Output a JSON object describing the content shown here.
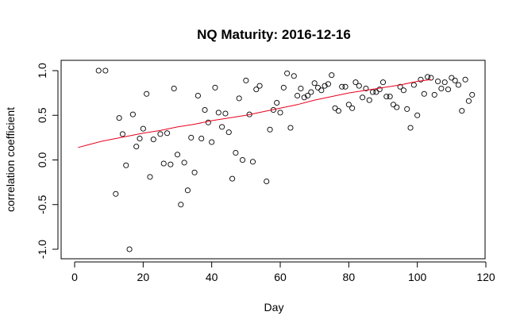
{
  "chart_data": {
    "type": "scatter",
    "title": "NQ Maturity: 2016-12-16",
    "xlabel": "Day",
    "ylabel": "correlation coefficient",
    "xlim": [
      1,
      116
    ],
    "ylim": [
      -1.0,
      1.0
    ],
    "x_ticks": [
      0,
      20,
      40,
      60,
      80,
      100,
      120
    ],
    "x_tick_labels": [
      "0",
      "20",
      "40",
      "60",
      "80",
      "100",
      "120"
    ],
    "y_ticks": [
      -1.0,
      -0.5,
      0.0,
      0.5,
      1.0
    ],
    "y_tick_labels": [
      "-1.0",
      "-0.5",
      "0.0",
      "0.5",
      "1.0"
    ],
    "grid": false,
    "trend_color": "#e8001c",
    "series": [
      {
        "x": [
          7,
          9,
          12,
          13,
          14,
          15,
          16,
          17,
          18,
          19,
          20,
          21,
          22,
          23,
          25,
          26,
          27,
          28,
          29,
          30,
          31,
          32,
          33,
          34,
          35,
          36,
          37,
          38,
          39,
          40,
          41,
          42,
          43,
          44,
          45,
          46,
          47,
          48,
          49,
          50,
          51,
          52,
          53,
          54,
          56,
          57,
          58,
          59,
          60,
          61,
          62,
          63,
          64,
          65,
          66,
          67,
          68,
          69,
          70,
          71,
          72,
          73,
          74,
          75,
          76,
          77,
          78,
          79,
          80,
          81,
          82,
          83,
          84,
          85,
          86,
          87,
          88,
          89,
          90,
          91,
          92,
          93,
          94,
          95,
          96,
          97,
          98,
          99,
          100,
          101,
          102,
          103,
          104,
          105,
          106,
          107,
          108,
          109,
          110,
          111,
          112,
          113,
          114,
          115,
          116
        ],
        "y": [
          1.0,
          1.0,
          -0.38,
          0.47,
          0.29,
          -0.06,
          -1.0,
          0.51,
          0.15,
          0.24,
          0.35,
          0.74,
          -0.19,
          0.23,
          0.29,
          -0.04,
          0.3,
          -0.05,
          0.8,
          0.06,
          -0.5,
          -0.03,
          -0.34,
          0.25,
          -0.14,
          0.72,
          0.24,
          0.56,
          0.42,
          0.2,
          0.81,
          0.53,
          0.37,
          0.52,
          0.31,
          -0.21,
          0.08,
          0.69,
          0.0,
          0.89,
          0.51,
          -0.02,
          0.79,
          0.83,
          -0.24,
          0.34,
          0.56,
          0.64,
          0.53,
          0.81,
          0.97,
          0.36,
          0.94,
          0.72,
          0.8,
          0.7,
          0.72,
          0.76,
          0.86,
          0.81,
          0.78,
          0.83,
          0.85,
          0.95,
          0.58,
          0.55,
          0.82,
          0.82,
          0.62,
          0.58,
          0.87,
          0.83,
          0.7,
          0.8,
          0.67,
          0.76,
          0.76,
          0.79,
          0.87,
          0.71,
          0.71,
          0.62,
          0.59,
          0.82,
          0.78,
          0.57,
          0.36,
          0.84,
          0.5,
          0.9,
          0.74,
          0.93,
          0.92,
          0.73,
          0.88,
          0.8,
          0.87,
          0.79,
          0.92,
          0.89,
          0.84,
          0.55,
          0.9,
          0.66,
          0.73
        ]
      }
    ],
    "trend": {
      "x": [
        1,
        4,
        8,
        12,
        16,
        20,
        25,
        30,
        35,
        40,
        45,
        50,
        55,
        60,
        65,
        70,
        75,
        80,
        85,
        90,
        95,
        100,
        104
      ],
      "y": [
        0.14,
        0.17,
        0.21,
        0.24,
        0.27,
        0.3,
        0.33,
        0.37,
        0.4,
        0.44,
        0.47,
        0.5,
        0.54,
        0.58,
        0.62,
        0.67,
        0.71,
        0.75,
        0.78,
        0.81,
        0.84,
        0.88,
        0.9
      ]
    }
  }
}
